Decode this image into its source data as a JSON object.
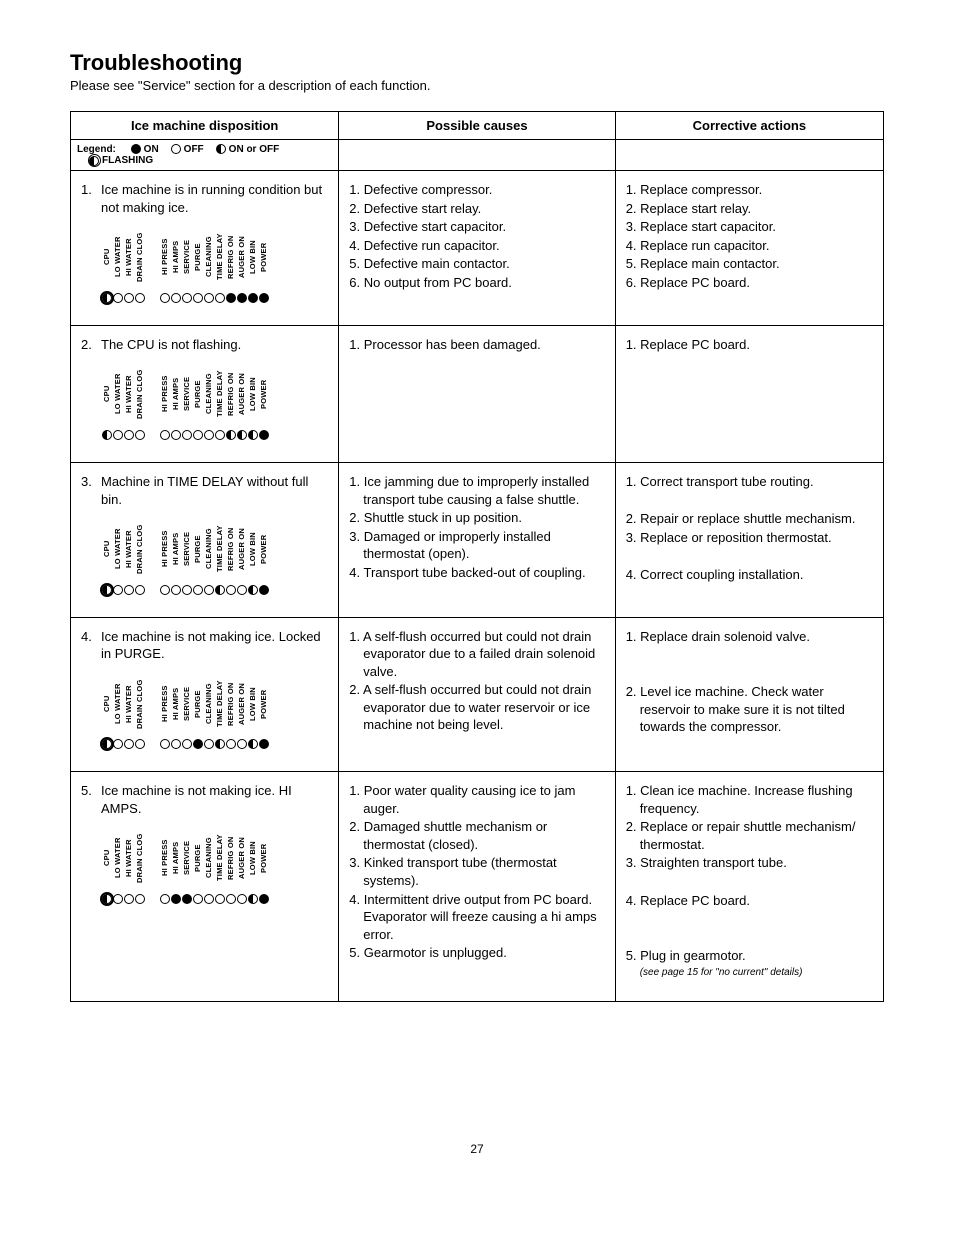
{
  "heading": "Troubleshooting",
  "subtitle": "Please see \"Service\" section for a description of each function.",
  "columns": [
    "Ice machine disposition",
    "Possible causes",
    "Corrective actions"
  ],
  "legend": {
    "label": "Legend:",
    "items": [
      {
        "state": "on",
        "text": "ON"
      },
      {
        "state": "off",
        "text": "OFF"
      },
      {
        "state": "half",
        "text": "ON or OFF"
      },
      {
        "state": "flash",
        "text": "FLASHING"
      }
    ]
  },
  "led_labels_g1": [
    "CPU",
    "LO WATER",
    "HI WATER",
    "DRAIN CLOG"
  ],
  "led_labels_g2": [
    "HI PRESS",
    "HI AMPS",
    "SERVICE",
    "PURGE",
    "CLEANING",
    "TIME DELAY",
    "REFRIG ON",
    "AUGER ON",
    "LOW BIN",
    "POWER"
  ],
  "rows": [
    {
      "n": "1.",
      "disp": "Ice machine is in running condition but not making ice.",
      "g1": [
        "flash",
        "off",
        "off",
        "off"
      ],
      "g2": [
        "off",
        "off",
        "off",
        "off",
        "off",
        "off",
        "on",
        "on",
        "on",
        "on"
      ],
      "causes": [
        "1. Defective compressor.",
        "2. Defective start relay.",
        "3. Defective start capacitor.",
        "4. Defective run capacitor.",
        "5. Defective main contactor.",
        "6. No output from PC board."
      ],
      "actions": [
        "1. Replace compressor.",
        "2. Replace start relay.",
        "3. Replace start capacitor.",
        "4. Replace run capacitor.",
        "5. Replace main contactor.",
        "6. Replace PC board."
      ]
    },
    {
      "n": "2.",
      "disp": "The CPU is not flashing.",
      "g1": [
        "half",
        "off",
        "off",
        "off"
      ],
      "g2": [
        "off",
        "off",
        "off",
        "off",
        "off",
        "off",
        "half",
        "half",
        "half",
        "on"
      ],
      "causes": [
        "1. Processor has been damaged."
      ],
      "actions": [
        "1. Replace PC board."
      ]
    },
    {
      "n": "3.",
      "disp": "Machine in TIME DELAY without full bin.",
      "g1": [
        "flash",
        "off",
        "off",
        "off"
      ],
      "g2": [
        "off",
        "off",
        "off",
        "off",
        "off",
        "half",
        "off",
        "off",
        "half",
        "on"
      ],
      "causes": [
        "1. Ice jamming due to improperly installed transport tube causing a false shuttle.",
        "2. Shuttle stuck in up position.",
        "3. Damaged or improperly installed thermostat (open).",
        "4. Transport tube backed-out of coupling."
      ],
      "actions": [
        "1. Correct transport tube routing.",
        "",
        "2. Repair or replace shuttle mechanism.",
        "3. Replace or reposition thermostat.",
        "",
        "4. Correct coupling installation."
      ]
    },
    {
      "n": "4.",
      "disp": "Ice machine is not making ice. Locked in PURGE.",
      "g1": [
        "flash",
        "off",
        "off",
        "off"
      ],
      "g2": [
        "off",
        "off",
        "off",
        "on",
        "off",
        "half",
        "off",
        "off",
        "half",
        "on"
      ],
      "causes": [
        "1. A self-flush occurred but could not drain evaporator due to a failed drain solenoid valve.",
        "2. A self-flush occurred but could not drain evaporator due to water reservoir or ice machine not being level."
      ],
      "actions": [
        "1. Replace drain solenoid valve.",
        "",
        "",
        "2. Level ice machine. Check water reservoir to make sure it is not tilted towards the compressor."
      ]
    },
    {
      "n": "5.",
      "disp": "Ice machine is not making ice. HI AMPS.",
      "g1": [
        "flash",
        "off",
        "off",
        "off"
      ],
      "g2": [
        "off",
        "on",
        "on",
        "off",
        "off",
        "off",
        "off",
        "off",
        "half",
        "on"
      ],
      "causes": [
        "1. Poor water quality causing ice to jam auger.",
        "2. Damaged shuttle mechanism or thermostat (closed).",
        "3. Kinked transport tube (thermostat systems).",
        "4. Intermittent drive output from PC board. Evaporator will freeze causing a hi amps error.",
        "5. Gearmotor is unplugged."
      ],
      "actions": [
        "1. Clean ice machine. Increase flushing frequency.",
        "2. Replace or repair shuttle mechanism/ thermostat.",
        "3. Straighten transport tube.",
        "",
        "4. Replace PC board.",
        "",
        "",
        "5. Plug in gearmotor."
      ],
      "action_note": "(see page 15 for \"no current\" details)"
    }
  ],
  "page_number": "27"
}
